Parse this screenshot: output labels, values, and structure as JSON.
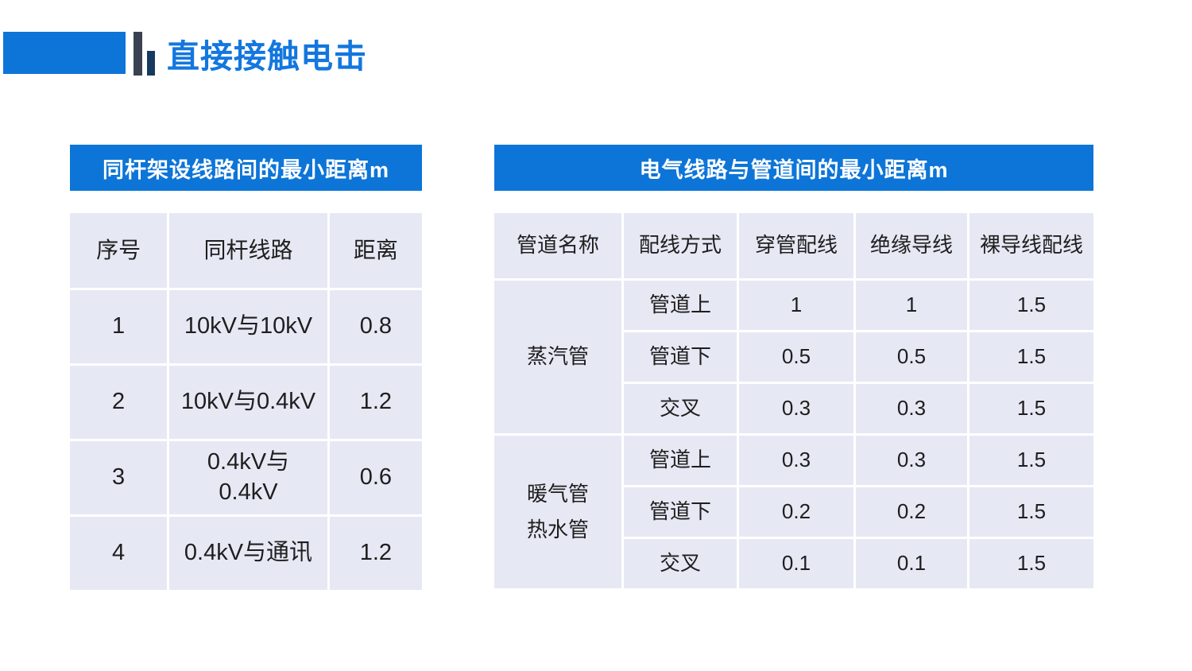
{
  "slide": {
    "title": "直接接触电击"
  },
  "left_table": {
    "title": "同杆架设线路间的最小距离m",
    "columns": [
      "序号",
      "同杆线路",
      "距离"
    ],
    "rows": [
      {
        "no": "1",
        "line": "10kV与10kV",
        "distance": "0.8"
      },
      {
        "no": "2",
        "line": "10kV与0.4kV",
        "distance": "1.2"
      },
      {
        "no": "3",
        "line": "0.4kV与\n0.4kV",
        "distance": "0.6"
      },
      {
        "no": "4",
        "line": "0.4kV与通讯",
        "distance": "1.2"
      }
    ]
  },
  "right_table": {
    "title": "电气线路与管道间的最小距离m",
    "columns": [
      "管道名称",
      "配线方式",
      "穿管配线",
      "绝缘导线",
      "裸导线配线"
    ],
    "groups": [
      {
        "pipe": "蒸汽管",
        "rows": [
          {
            "method": "管道上",
            "conduit": "1",
            "insulated": "1",
            "bare": "1.5"
          },
          {
            "method": "管道下",
            "conduit": "0.5",
            "insulated": "0.5",
            "bare": "1.5"
          },
          {
            "method": "交叉",
            "conduit": "0.3",
            "insulated": "0.3",
            "bare": "1.5"
          }
        ]
      },
      {
        "pipe": "暖气管\n热水管",
        "rows": [
          {
            "method": "管道上",
            "conduit": "0.3",
            "insulated": "0.3",
            "bare": "1.5"
          },
          {
            "method": "管道下",
            "conduit": "0.2",
            "insulated": "0.2",
            "bare": "1.5"
          },
          {
            "method": "交叉",
            "conduit": "0.1",
            "insulated": "0.1",
            "bare": "1.5"
          }
        ]
      }
    ]
  },
  "colors": {
    "brand_blue": "#0d75d8",
    "title_blue": "#1377de",
    "cell_background": "#e6e8f4",
    "decor_bar_charcoal": "#3a4150",
    "decor_bar_navy": "#16395f",
    "text_dark": "#1e1e1e"
  }
}
